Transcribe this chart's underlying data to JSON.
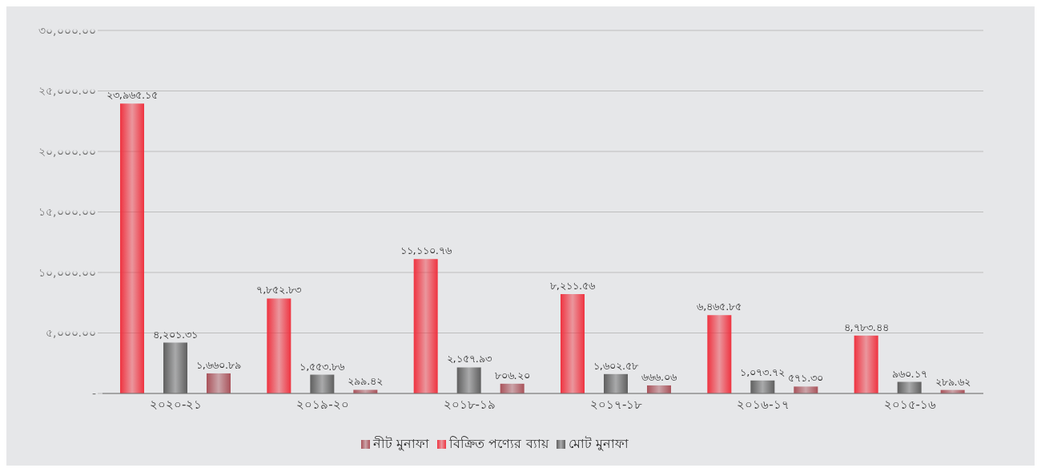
{
  "chart_data": {
    "type": "bar",
    "categories": [
      "২০২০-২১",
      "২০১৯-২০",
      "২০১৮-১৯",
      "২০১৭-১৮",
      "২০১৬-১৭",
      "২০১৫-১৬"
    ],
    "series": [
      {
        "name": "বিক্রিত পণ্যের ব্যায়",
        "color": "#ef3340",
        "values": [
          23965.15,
          7852.83,
          11110.76,
          8211.56,
          6465.85,
          4783.44
        ],
        "value_labels": [
          "২৩,৯৬৫.১৫",
          "৭,৮৫২.৮৩",
          "১১,১১০.৭৬",
          "৮,২১১.৫৬",
          "৬,৪৬৫.৮৫",
          "৪,৭৮৩.৪৪"
        ]
      },
      {
        "name": "মোট মুনাফা",
        "color": "#5f5f5f",
        "values": [
          4201.31,
          1553.86,
          2157.93,
          1602.58,
          1073.72,
          960.17
        ],
        "value_labels": [
          "৪,২০১.৩১",
          "১,৫৫৩.৮৬",
          "২,১৫৭.৯৩",
          "১,৬০২.৫৮",
          "১,০৭৩.৭২",
          "৯৬০.১৭"
        ]
      },
      {
        "name": "নীট মুনাফা",
        "color": "#a9525a",
        "values": [
          1660.89,
          299.42,
          806.2,
          666.06,
          571.3,
          289.62
        ],
        "value_labels": [
          "১,৬৬০.৮৯",
          "২৯৯.৪২",
          "৮০৬.২০",
          "৬৬৬.০৬",
          "৫৭১.৩০",
          "২৮৯.৬২"
        ]
      }
    ],
    "ylim": [
      0,
      30000
    ],
    "yticks": [
      {
        "value": 0,
        "label": "-"
      },
      {
        "value": 5000,
        "label": "৫,০০০.০০"
      },
      {
        "value": 10000,
        "label": "১০,০০০.০০"
      },
      {
        "value": 15000,
        "label": "১৫,০০০.০০"
      },
      {
        "value": 20000,
        "label": "২০,০০০.০০"
      },
      {
        "value": 25000,
        "label": "২৫,০০০.০০"
      },
      {
        "value": 30000,
        "label": "৩০,০০০.০০"
      }
    ],
    "grid": "y",
    "legend": "bottom"
  }
}
